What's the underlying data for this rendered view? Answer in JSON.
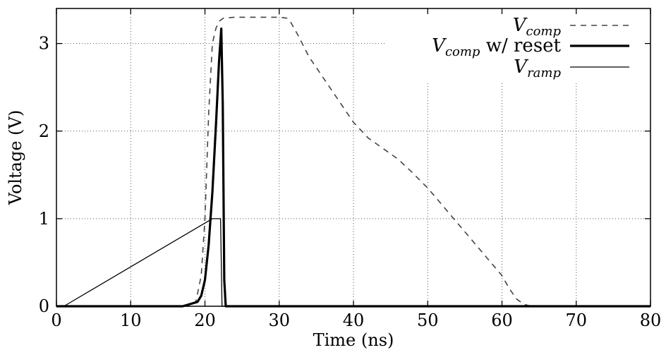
{
  "chart_data": {
    "type": "line",
    "xlabel": "Time (ns)",
    "ylabel": "Voltage (V)",
    "xlim": [
      0,
      80
    ],
    "ylim": [
      0,
      3.4
    ],
    "x_ticks": [
      0,
      10,
      20,
      30,
      40,
      50,
      60,
      70,
      80
    ],
    "y_ticks": [
      0,
      1,
      2,
      3
    ],
    "grid": true,
    "legend_position": "top-right",
    "series": [
      {
        "name": "V_comp",
        "legend_main": "V",
        "legend_sub": "comp",
        "legend_suffix": "",
        "style": "dashed",
        "x": [
          0,
          16,
          18,
          18.8,
          19.5,
          20,
          20.5,
          21,
          21.5,
          22,
          22.5,
          24,
          26,
          28,
          30,
          31,
          31.5,
          32.5,
          34,
          36,
          38,
          40,
          42,
          44,
          46,
          48,
          50,
          52,
          54,
          56,
          58,
          60,
          61,
          62,
          63,
          64,
          66,
          80
        ],
        "y": [
          0,
          0,
          0,
          0.06,
          0.35,
          1.0,
          2.2,
          3.0,
          3.18,
          3.26,
          3.29,
          3.3,
          3.3,
          3.3,
          3.3,
          3.29,
          3.25,
          3.1,
          2.85,
          2.6,
          2.35,
          2.1,
          1.92,
          1.8,
          1.68,
          1.52,
          1.35,
          1.15,
          0.95,
          0.75,
          0.55,
          0.35,
          0.2,
          0.08,
          0.02,
          0,
          0,
          0
        ]
      },
      {
        "name": "V_comp w/ reset",
        "legend_main": "V",
        "legend_sub": "comp",
        "legend_suffix": " w/ reset",
        "style": "thick",
        "x": [
          0,
          17,
          19,
          19.5,
          20,
          20.5,
          21,
          21.5,
          21.9,
          22.2,
          22.4,
          22.6,
          22.8,
          80
        ],
        "y": [
          0,
          0,
          0.05,
          0.12,
          0.3,
          0.7,
          1.3,
          2.1,
          2.8,
          3.17,
          2.3,
          0.3,
          0,
          0
        ]
      },
      {
        "name": "V_ramp",
        "legend_main": "V",
        "legend_sub": "ramp",
        "legend_suffix": "",
        "style": "thin",
        "x": [
          0,
          1,
          21,
          22.1,
          22.3,
          80
        ],
        "y": [
          0,
          0,
          1,
          1,
          0,
          0
        ]
      }
    ]
  }
}
